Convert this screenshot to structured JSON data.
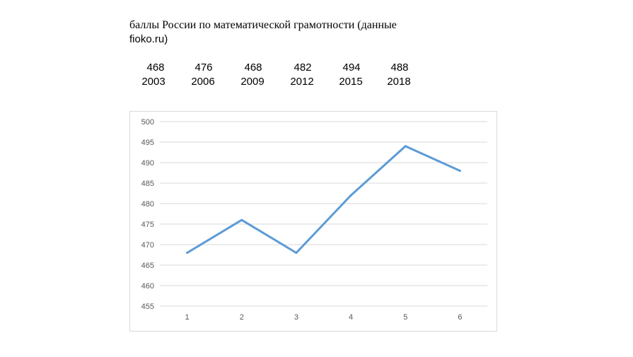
{
  "heading": {
    "line1": "баллы России по математической грамотности (данные",
    "line2": "fioko.ru)"
  },
  "score_table": {
    "scores": [
      "468",
      "476",
      "468",
      "482",
      "494",
      "488"
    ],
    "years": [
      "2003",
      "2006",
      "2009",
      "2012",
      "2015",
      "2018"
    ]
  },
  "colors": {
    "line": "#5b9bd5",
    "grid": "#d9d9d9",
    "tick_text": "#595959"
  },
  "chart_data": {
    "type": "line",
    "categories": [
      "1",
      "2",
      "3",
      "4",
      "5",
      "6"
    ],
    "series": [
      {
        "values": [
          468,
          476,
          468,
          482,
          494,
          488
        ]
      }
    ],
    "yticks": [
      455,
      460,
      465,
      470,
      475,
      480,
      485,
      490,
      495,
      500
    ],
    "ylim": [
      455,
      500
    ],
    "grid": true,
    "legend": "none"
  }
}
